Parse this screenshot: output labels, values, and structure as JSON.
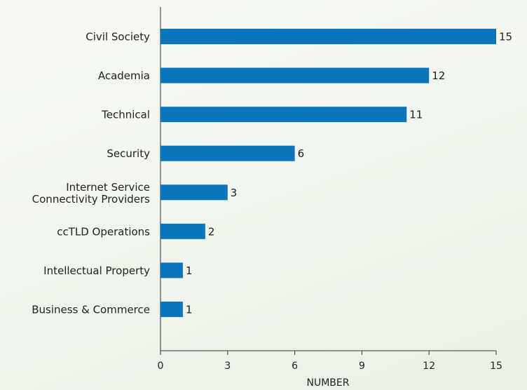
{
  "chart_data": {
    "type": "bar",
    "orientation": "horizontal",
    "categories": [
      "Civil Society",
      "Academia",
      "Technical",
      "Security",
      "Internet Service\nConnectivity Providers",
      "ccTLD Operations",
      "Intellectual Property",
      "Business & Commerce"
    ],
    "values": [
      15,
      12,
      11,
      6,
      3,
      2,
      1,
      1
    ],
    "color": "#0a74bc",
    "xlim": [
      0,
      15
    ],
    "xticks": [
      0,
      3,
      6,
      9,
      12,
      15
    ],
    "xlabel": "NUMBER"
  }
}
